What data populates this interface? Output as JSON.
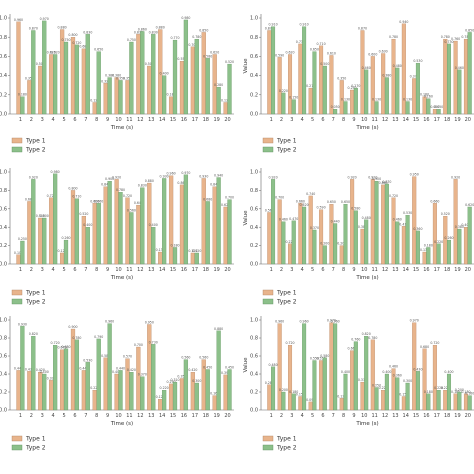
{
  "colors": {
    "type1": "#e8b48c",
    "type2": "#8cc08a",
    "type1_edge": "#b08060",
    "type2_edge": "#5e905c"
  },
  "chart_data": [
    {
      "type": "bar",
      "categories": [
        "1",
        "2",
        "3",
        "4",
        "5",
        "6",
        "7",
        "8",
        "9",
        "10",
        "11",
        "12",
        "13",
        "14",
        "15",
        "16",
        "17",
        "18",
        "19",
        "20"
      ],
      "xlabel": "Time (s)",
      "ylabel": "",
      "ylim": [
        0,
        1.0
      ],
      "yticks": [
        "0.0",
        "0.2",
        "0.4",
        "0.6",
        "0.8",
        "1.0"
      ],
      "legend": "bottom-left",
      "series": [
        {
          "name": "Type 1",
          "values": [
            0.96,
            0.35,
            0.5,
            0.62,
            0.88,
            0.8,
            0.68,
            0.12,
            0.32,
            0.38,
            0.35,
            0.83,
            0.5,
            0.88,
            0.18,
            0.55,
            0.7,
            0.85,
            0.62,
            0.12
          ]
        },
        {
          "name": "Type 2",
          "values": [
            0.18,
            0.87,
            0.97,
            0.62,
            0.75,
            0.72,
            0.83,
            0.65,
            0.38,
            0.35,
            0.75,
            0.86,
            0.83,
            0.4,
            0.77,
            0.98,
            0.78,
            0.58,
            0.28,
            0.52
          ]
        }
      ]
    },
    {
      "type": "bar",
      "categories": [
        "1",
        "2",
        "3",
        "4",
        "5",
        "6",
        "7",
        "8",
        "9",
        "10",
        "11",
        "12",
        "13",
        "14",
        "15",
        "16",
        "17",
        "18",
        "19",
        "20"
      ],
      "xlabel": "Time (s)",
      "ylabel": "Value",
      "ylim": [
        0,
        1.0
      ],
      "yticks": [
        "0.0",
        "0.2",
        "0.4",
        "0.6",
        "0.8",
        "1.0"
      ],
      "legend": "bottom-left",
      "series": [
        {
          "name": "Type 1",
          "values": [
            0.87,
            0.59,
            0.62,
            0.73,
            0.27,
            0.71,
            0.61,
            0.35,
            0.25,
            0.87,
            0.6,
            0.63,
            0.78,
            0.94,
            0.37,
            0.18,
            0.05,
            0.78,
            0.76,
            0.78
          ]
        },
        {
          "name": "Type 2",
          "values": [
            0.91,
            0.22,
            0.15,
            0.91,
            0.65,
            0.5,
            0.05,
            0.13,
            0.27,
            0.46,
            0.13,
            0.38,
            0.48,
            0.13,
            0.53,
            0.16,
            0.05,
            0.73,
            0.46,
            0.85
          ]
        }
      ]
    },
    {
      "type": "bar",
      "categories": [
        "1",
        "2",
        "3",
        "4",
        "5",
        "6",
        "7",
        "8",
        "9",
        "10",
        "11",
        "12",
        "13",
        "14",
        "15",
        "16",
        "17",
        "18",
        "19",
        "20"
      ],
      "xlabel": "Time (s)",
      "ylabel": "",
      "ylim": [
        0,
        1.0
      ],
      "yticks": [
        "0.0",
        "0.2",
        "0.4",
        "0.6",
        "0.8",
        "1.0"
      ],
      "legend": "bottom-left",
      "series": [
        {
          "name": "Type 1",
          "values": [
            0.1,
            0.68,
            0.5,
            0.72,
            0.12,
            0.8,
            0.52,
            0.66,
            0.84,
            0.92,
            0.72,
            0.64,
            0.88,
            0.13,
            0.96,
            0.86,
            0.12,
            0.93,
            0.84,
            0.62
          ]
        },
        {
          "name": "Type 2",
          "values": [
            0.25,
            0.92,
            0.5,
            0.98,
            0.26,
            0.71,
            0.4,
            0.66,
            0.9,
            0.78,
            0.56,
            0.83,
            0.4,
            0.93,
            0.18,
            0.97,
            0.12,
            0.68,
            0.94,
            0.7
          ]
        }
      ]
    },
    {
      "type": "bar",
      "categories": [
        "1",
        "2",
        "3",
        "4",
        "5",
        "6",
        "7",
        "8",
        "9",
        "10",
        "11",
        "12",
        "13",
        "14",
        "15",
        "16",
        "17",
        "18",
        "19",
        "20"
      ],
      "xlabel": "Time (s)",
      "ylabel": "Value",
      "ylim": [
        0,
        1.0
      ],
      "yticks": [
        "0.0",
        "0.2",
        "0.4",
        "0.6",
        "0.8",
        "1.0"
      ],
      "legend": "bottom-left",
      "series": [
        {
          "name": "Type 1",
          "values": [
            0.56,
            0.7,
            0.22,
            0.66,
            0.74,
            0.59,
            0.65,
            0.2,
            0.92,
            0.38,
            0.92,
            0.86,
            0.72,
            0.41,
            0.95,
            0.13,
            0.66,
            0.52,
            0.92,
            0.4
          ]
        },
        {
          "name": "Type 2",
          "values": [
            0.92,
            0.46,
            0.47,
            0.62,
            0.37,
            0.2,
            0.44,
            0.65,
            0.58,
            0.48,
            0.9,
            0.87,
            0.46,
            0.53,
            0.36,
            0.18,
            0.22,
            0.26,
            0.38,
            0.62
          ]
        }
      ]
    },
    {
      "type": "bar",
      "categories": [
        "1",
        "2",
        "3",
        "4",
        "5",
        "6",
        "7",
        "8",
        "9",
        "10",
        "11",
        "12",
        "13",
        "14",
        "15",
        "16",
        "17",
        "18",
        "19",
        "20"
      ],
      "xlabel": "Time (s)",
      "ylabel": "",
      "ylim": [
        0,
        1.0
      ],
      "yticks": [
        "0.0",
        "0.2",
        "0.4",
        "0.6",
        "0.8",
        "1.0"
      ],
      "legend": "bottom-left",
      "series": [
        {
          "name": "Type 1",
          "values": [
            0.44,
            0.43,
            0.42,
            0.33,
            0.67,
            0.9,
            0.44,
            0.22,
            0.58,
            0.4,
            0.57,
            0.7,
            0.95,
            0.12,
            0.29,
            0.35,
            0.42,
            0.56,
            0.16,
            0.39
          ]
        },
        {
          "name": "Type 2",
          "values": [
            0.93,
            0.82,
            0.4,
            0.72,
            0.68,
            0.78,
            0.53,
            0.79,
            0.96,
            0.44,
            0.42,
            0.37,
            0.73,
            0.22,
            0.31,
            0.56,
            0.3,
            0.45,
            0.88,
            0.45
          ]
        }
      ]
    },
    {
      "type": "bar",
      "categories": [
        "1",
        "2",
        "3",
        "4",
        "5",
        "6",
        "7",
        "8",
        "9",
        "10",
        "11",
        "12",
        "13",
        "14",
        "15",
        "16",
        "17",
        "18",
        "19",
        "20"
      ],
      "xlabel": "Time (s)",
      "ylabel": "Value",
      "ylim": [
        0,
        1.0
      ],
      "yticks": [
        "0.0",
        "0.2",
        "0.4",
        "0.6",
        "0.8",
        "1.0"
      ],
      "legend": "bottom-left",
      "series": [
        {
          "name": "Type 1",
          "values": [
            0.28,
            0.96,
            0.72,
            0.15,
            0.09,
            0.55,
            0.97,
            0.13,
            0.66,
            0.31,
            0.78,
            0.22,
            0.46,
            0.15,
            0.97,
            0.68,
            0.72,
            0.22,
            0.18,
            0.18
          ]
        },
        {
          "name": "Type 2",
          "values": [
            0.48,
            0.2,
            0.18,
            0.96,
            0.55,
            0.58,
            0.96,
            0.4,
            0.76,
            0.82,
            0.25,
            0.4,
            0.36,
            0.3,
            0.43,
            0.18,
            0.22,
            0.4,
            0.2,
            0.16
          ]
        }
      ]
    }
  ]
}
